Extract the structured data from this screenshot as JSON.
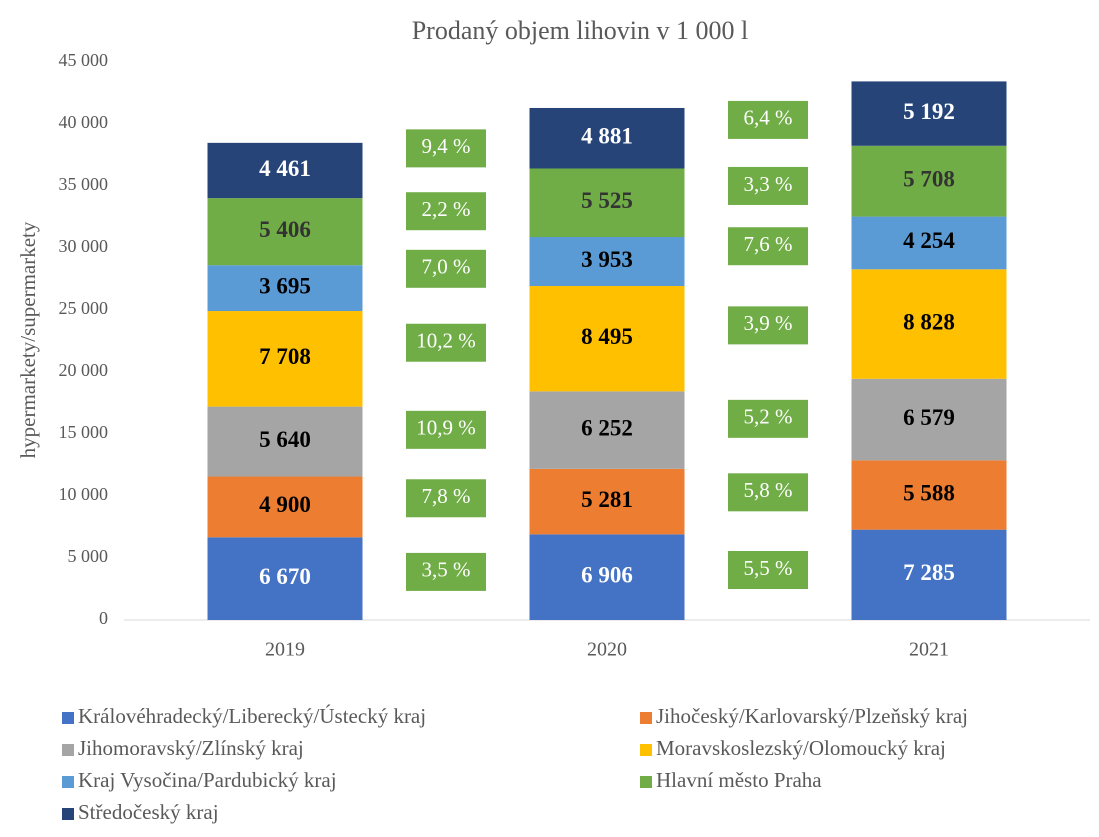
{
  "chart_data": {
    "type": "stacked_bar",
    "title": "Prodaný objem lihovin v 1 000 l",
    "y_label": "hypermarkety/supermarkety",
    "categories": [
      "2019",
      "2020",
      "2021"
    ],
    "ylim": [
      0,
      45000
    ],
    "yticks": [
      {
        "value": 0,
        "label": "0"
      },
      {
        "value": 5000,
        "label": "5 000"
      },
      {
        "value": 10000,
        "label": "10 000"
      },
      {
        "value": 15000,
        "label": "15 000"
      },
      {
        "value": 20000,
        "label": "20 000"
      },
      {
        "value": 25000,
        "label": "25 000"
      },
      {
        "value": 30000,
        "label": "30 000"
      },
      {
        "value": 35000,
        "label": "35 000"
      },
      {
        "value": 40000,
        "label": "40 000"
      },
      {
        "value": 45000,
        "label": "45 000"
      }
    ],
    "series": [
      {
        "name": "Královéhradecký/Liberecký/Ústecký kraj",
        "color": "#4472c4",
        "label_color": "#ffffff",
        "values": [
          6670,
          6906,
          7285
        ],
        "value_labels": [
          "6 670",
          "6 906",
          "7 285"
        ]
      },
      {
        "name": "Jihočeský/Karlovarský/Plzeňský kraj",
        "color": "#ed7d31",
        "label_color": "#000000",
        "values": [
          4900,
          5281,
          5588
        ],
        "value_labels": [
          "4 900",
          "5 281",
          "5 588"
        ]
      },
      {
        "name": "Jihomoravský/Zlínský kraj",
        "color": "#a5a5a5",
        "label_color": "#000000",
        "values": [
          5640,
          6252,
          6579
        ],
        "value_labels": [
          "5 640",
          "6 252",
          "6 579"
        ]
      },
      {
        "name": "Moravskoslezský/Olomoucký kraj",
        "color": "#ffc000",
        "label_color": "#000000",
        "values": [
          7708,
          8495,
          8828
        ],
        "value_labels": [
          "7 708",
          "8 495",
          "8 828"
        ]
      },
      {
        "name": "Kraj Vysočina/Pardubický kraj",
        "color": "#5b9bd5",
        "label_color": "#000000",
        "values": [
          3695,
          3953,
          4254
        ],
        "value_labels": [
          "3 695",
          "3 953",
          "4 254"
        ]
      },
      {
        "name": "Hlavní město Praha",
        "color": "#70ad47",
        "label_color": "#333333",
        "values": [
          5406,
          5525,
          5708
        ],
        "value_labels": [
          "5 406",
          "5 525",
          "5 708"
        ]
      },
      {
        "name": "Středočeský kraj",
        "color": "#264478",
        "label_color": "#ffffff",
        "values": [
          4461,
          4881,
          5192
        ],
        "value_labels": [
          "4 461",
          "4 881",
          "5 192"
        ]
      }
    ],
    "growth_labels": [
      [
        "3,5 %",
        "7,8 %",
        "10,9 %",
        "10,2 %",
        "7,0 %",
        "2,2 %",
        "9,4 %"
      ],
      [
        "5,5 %",
        "5,8 %",
        "5,2 %",
        "3,9 %",
        "7,6 %",
        "3,3 %",
        "6,4 %"
      ]
    ],
    "growth_color": "#70ad47"
  }
}
